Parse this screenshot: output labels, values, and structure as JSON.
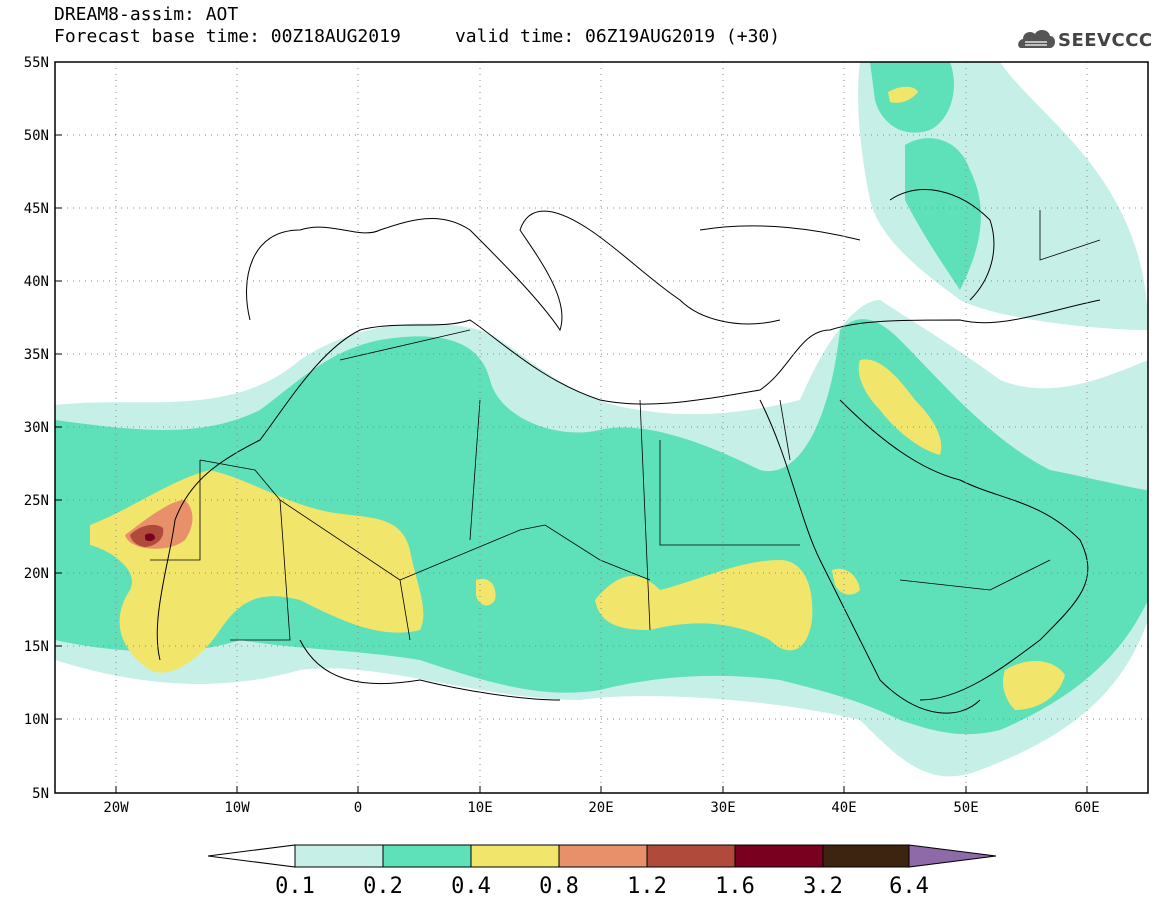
{
  "header": {
    "title_line1": "DREAM8-assim: AOT",
    "title_line2": "Forecast base time: 00Z18AUG2019     valid time: 06Z19AUG2019 (+30)"
  },
  "logo": {
    "text": "SEEVCCC",
    "icon": "cloud-logo-icon"
  },
  "map": {
    "lon_range": [
      -25,
      65
    ],
    "lat_range": [
      5,
      55
    ],
    "lat_labels": [
      "55N",
      "50N",
      "45N",
      "40N",
      "35N",
      "30N",
      "25N",
      "20N",
      "15N",
      "10N",
      "5N"
    ],
    "lon_labels": [
      "20W",
      "10W",
      "0",
      "10E",
      "20E",
      "30E",
      "40E",
      "50E",
      "60E"
    ],
    "grid": "dotted"
  },
  "colorbar": {
    "labels": [
      "0.1",
      "0.2",
      "0.4",
      "0.8",
      "1.2",
      "1.6",
      "3.2",
      "6.4"
    ],
    "colors": [
      "#c6efe8",
      "#5ee0b8",
      "#f2e56b",
      "#e8906a",
      "#b04b3c",
      "#7a0020",
      "#3d2410",
      "#8f6aa8"
    ],
    "under_color": "#ffffff"
  }
}
